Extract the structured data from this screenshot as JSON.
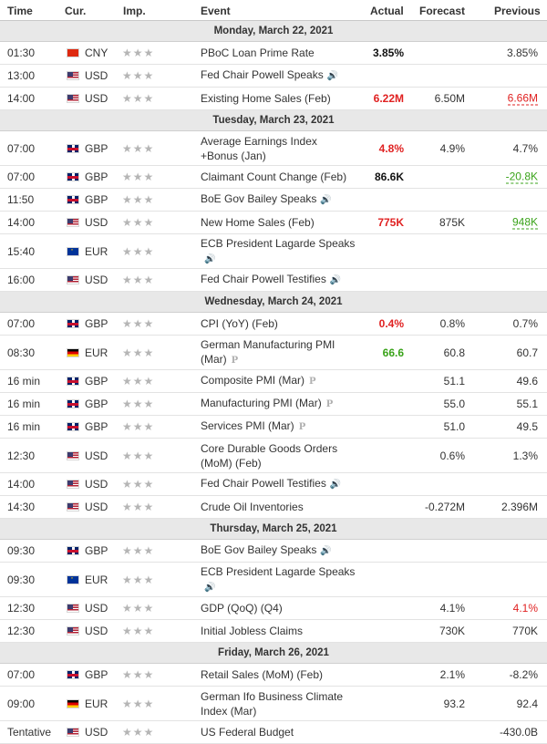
{
  "header": {
    "time": "Time",
    "currency": "Cur.",
    "importance": "Imp.",
    "event": "Event",
    "actual": "Actual",
    "forecast": "Forecast",
    "previous": "Previous"
  },
  "rows": [
    {
      "type": "day",
      "label": "Monday, March 22, 2021"
    },
    {
      "type": "event",
      "h": 25,
      "time": "01:30",
      "flag": "CNY",
      "cur": "CNY",
      "stars": "★★★",
      "event": "PBoC Loan Prime Rate",
      "actual": "3.85%",
      "actual_style": "black",
      "forecast": "",
      "previous": "3.85%",
      "previous_style": ""
    },
    {
      "type": "event",
      "h": 25,
      "time": "13:00",
      "flag": "USD",
      "cur": "USD",
      "stars": "★★★",
      "event": "Fed Chair Powell Speaks",
      "tag": "speech",
      "actual": "",
      "forecast": "",
      "previous": ""
    },
    {
      "type": "event",
      "h": 25,
      "time": "14:00",
      "flag": "USD",
      "cur": "USD",
      "stars": "★★★",
      "event": "Existing Home Sales (Feb)",
      "actual": "6.22M",
      "actual_style": "red",
      "forecast": "6.50M",
      "previous": "6.66M",
      "previous_style": "u-red"
    },
    {
      "type": "day",
      "label": "Tuesday, March 23, 2021"
    },
    {
      "type": "event",
      "h": 38,
      "time": "07:00",
      "flag": "GBP",
      "cur": "GBP",
      "stars": "★★★",
      "event": "Average Earnings Index +Bonus (Jan)",
      "actual": "4.8%",
      "actual_style": "red",
      "forecast": "4.9%",
      "previous": "4.7%",
      "previous_style": ""
    },
    {
      "type": "event",
      "h": 25,
      "time": "07:00",
      "flag": "GBP",
      "cur": "GBP",
      "stars": "★★★",
      "event": "Claimant Count Change (Feb)",
      "actual": "86.6K",
      "actual_style": "black",
      "forecast": "",
      "previous": "-20.8K",
      "previous_style": "u-green"
    },
    {
      "type": "event",
      "h": 25,
      "time": "11:50",
      "flag": "GBP",
      "cur": "GBP",
      "stars": "★★★",
      "event": "BoE Gov Bailey Speaks",
      "tag": "speech",
      "actual": "",
      "forecast": "",
      "previous": ""
    },
    {
      "type": "event",
      "h": 25,
      "time": "14:00",
      "flag": "USD",
      "cur": "USD",
      "stars": "★★★",
      "event": "New Home Sales (Feb)",
      "actual": "775K",
      "actual_style": "red",
      "forecast": "875K",
      "previous": "948K",
      "previous_style": "u-green"
    },
    {
      "type": "event",
      "h": 38,
      "time": "15:40",
      "flag": "EUR",
      "cur": "EUR",
      "stars": "★★★",
      "event": "ECB President Lagarde Speaks",
      "tag": "speech",
      "actual": "",
      "forecast": "",
      "previous": ""
    },
    {
      "type": "event",
      "h": 25,
      "time": "16:00",
      "flag": "USD",
      "cur": "USD",
      "stars": "★★★",
      "event": "Fed Chair Powell Testifies",
      "tag": "speech",
      "actual": "",
      "forecast": "",
      "previous": ""
    },
    {
      "type": "day",
      "label": "Wednesday, March 24, 2021"
    },
    {
      "type": "event",
      "h": 25,
      "time": "07:00",
      "flag": "GBP",
      "cur": "GBP",
      "stars": "★★★",
      "event": "CPI (YoY) (Feb)",
      "actual": "0.4%",
      "actual_style": "red",
      "forecast": "0.8%",
      "previous": "0.7%",
      "previous_style": ""
    },
    {
      "type": "event",
      "h": 38,
      "time": "08:30",
      "flag": "GER",
      "cur": "EUR",
      "stars": "★★★",
      "event": "German Manufacturing PMI (Mar)",
      "tag": "prelim",
      "actual": "66.6",
      "actual_style": "green",
      "forecast": "60.8",
      "previous": "60.7",
      "previous_style": ""
    },
    {
      "type": "event",
      "h": 25,
      "time": "16 min",
      "flag": "GBP",
      "cur": "GBP",
      "stars": "★★★",
      "event": "Composite PMI (Mar)",
      "tag": "prelim",
      "actual": "",
      "forecast": "51.1",
      "previous": "49.6",
      "previous_style": ""
    },
    {
      "type": "event",
      "h": 25,
      "time": "16 min",
      "flag": "GBP",
      "cur": "GBP",
      "stars": "★★★",
      "event": "Manufacturing PMI (Mar)",
      "tag": "prelim",
      "actual": "",
      "forecast": "55.0",
      "previous": "55.1",
      "previous_style": ""
    },
    {
      "type": "event",
      "h": 25,
      "time": "16 min",
      "flag": "GBP",
      "cur": "GBP",
      "stars": "★★★",
      "event": "Services PMI (Mar)",
      "tag": "prelim",
      "actual": "",
      "forecast": "51.0",
      "previous": "49.5",
      "previous_style": ""
    },
    {
      "type": "event",
      "h": 38,
      "time": "12:30",
      "flag": "USD",
      "cur": "USD",
      "stars": "★★★",
      "event": "Core Durable Goods Orders (MoM) (Feb)",
      "actual": "",
      "forecast": "0.6%",
      "previous": "1.3%",
      "previous_style": ""
    },
    {
      "type": "event",
      "h": 25,
      "time": "14:00",
      "flag": "USD",
      "cur": "USD",
      "stars": "★★★",
      "event": "Fed Chair Powell Testifies",
      "tag": "speech",
      "actual": "",
      "forecast": "",
      "previous": ""
    },
    {
      "type": "event",
      "h": 25,
      "time": "14:30",
      "flag": "USD",
      "cur": "USD",
      "stars": "★★★",
      "event": "Crude Oil Inventories",
      "actual": "",
      "forecast": "-0.272M",
      "previous": "2.396M",
      "previous_style": ""
    },
    {
      "type": "day",
      "label": "Thursday, March 25, 2021"
    },
    {
      "type": "event",
      "h": 25,
      "time": "09:30",
      "flag": "GBP",
      "cur": "GBP",
      "stars": "★★★",
      "event": "BoE Gov Bailey Speaks",
      "tag": "speech",
      "actual": "",
      "forecast": "",
      "previous": ""
    },
    {
      "type": "event",
      "h": 38,
      "time": "09:30",
      "flag": "EUR",
      "cur": "EUR",
      "stars": "★★★",
      "event": "ECB President Lagarde Speaks",
      "tag": "speech",
      "actual": "",
      "forecast": "",
      "previous": ""
    },
    {
      "type": "event",
      "h": 25,
      "time": "12:30",
      "flag": "USD",
      "cur": "USD",
      "stars": "★★★",
      "event": "GDP (QoQ) (Q4)",
      "actual": "",
      "forecast": "4.1%",
      "previous": "4.1%",
      "previous_style": "red"
    },
    {
      "type": "event",
      "h": 25,
      "time": "12:30",
      "flag": "USD",
      "cur": "USD",
      "stars": "★★★",
      "event": "Initial Jobless Claims",
      "actual": "",
      "forecast": "730K",
      "previous": "770K",
      "previous_style": ""
    },
    {
      "type": "day",
      "label": "Friday, March 26, 2021"
    },
    {
      "type": "event",
      "h": 25,
      "time": "07:00",
      "flag": "GBP",
      "cur": "GBP",
      "stars": "★★★",
      "event": "Retail Sales (MoM) (Feb)",
      "actual": "",
      "forecast": "2.1%",
      "previous": "-8.2%",
      "previous_style": ""
    },
    {
      "type": "event",
      "h": 38,
      "time": "09:00",
      "flag": "GER",
      "cur": "EUR",
      "stars": "★★★",
      "event": "German Ifo Business Climate Index (Mar)",
      "actual": "",
      "forecast": "93.2",
      "previous": "92.4",
      "previous_style": ""
    },
    {
      "type": "event",
      "h": 25,
      "time": "Tentative",
      "flag": "USD",
      "cur": "USD",
      "stars": "★★★",
      "event": "US Federal Budget",
      "actual": "",
      "forecast": "",
      "previous": "-430.0B",
      "previous_style": ""
    }
  ],
  "icons": {
    "speech": "🔊",
    "prelim": "P"
  }
}
